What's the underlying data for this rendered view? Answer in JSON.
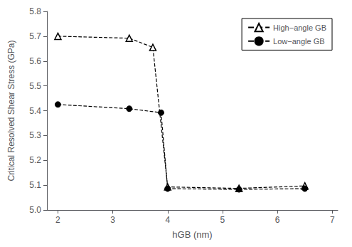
{
  "chart_data": {
    "type": "line",
    "xlabel": "hGB (nm)",
    "ylabel": "Critical Resolved Shear Stress (GPa)",
    "series": [
      {
        "name": "High−angle GB",
        "color": "#000000",
        "marker": "triangle-open",
        "line_style": "dashed",
        "x": [
          2.0,
          3.3,
          3.73,
          4.0,
          5.3,
          6.5
        ],
        "values": [
          5.7,
          5.692,
          5.655,
          5.093,
          5.087,
          5.097
        ]
      },
      {
        "name": "Low−angle GB",
        "color": "#000000",
        "marker": "circle",
        "line_style": "dashed",
        "x": [
          2.0,
          3.3,
          3.88,
          4.0,
          5.3,
          6.5
        ],
        "values": [
          5.425,
          5.408,
          5.392,
          5.086,
          5.083,
          5.086
        ]
      }
    ],
    "xlim": [
      1.8,
      7.1
    ],
    "ylim": [
      5.0,
      5.8
    ],
    "xticks": [
      2,
      3,
      4,
      5,
      6,
      7
    ],
    "yticks": [
      {
        "value": 5.0,
        "label": "5.0"
      },
      5.1,
      5.2,
      5.3,
      5.4,
      5.5,
      5.6,
      5.7,
      5.8
    ],
    "grid": false,
    "legend": "upper right"
  }
}
